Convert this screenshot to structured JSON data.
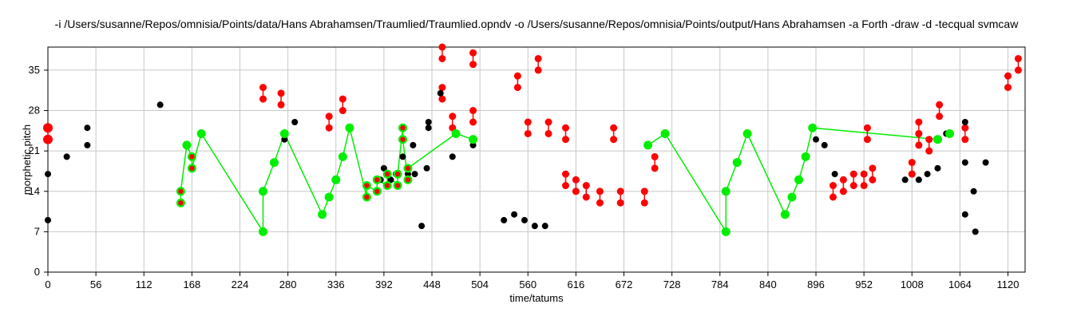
{
  "chart_data": {
    "type": "scatter",
    "title": "-i /Users/susanne/Repos/omnisia/Points/data/Hans Abrahamsen/Traumlied/Traumlied.opndv -o /Users/susanne/Repos/omnisia/Points/output/Hans Abrahamsen -a Forth -draw -d -tecqual svmcaw",
    "xlabel": "time/tatums",
    "ylabel": "morphetic pitch",
    "xlim": [
      0,
      1140
    ],
    "ylim": [
      0,
      39
    ],
    "xticks": [
      0,
      56,
      112,
      168,
      224,
      280,
      336,
      392,
      448,
      504,
      560,
      616,
      672,
      728,
      784,
      840,
      896,
      952,
      1008,
      1064,
      1120
    ],
    "yticks": [
      0,
      7,
      14,
      21,
      28,
      35
    ],
    "grid": true,
    "colors": {
      "pattern": "#00ee00",
      "occurrence": "#ff0000",
      "notes": "#000000",
      "grid": "#c8c8c8"
    },
    "notes": [
      [
        0,
        9
      ],
      [
        0,
        17
      ],
      [
        22,
        20
      ],
      [
        46,
        22
      ],
      [
        46,
        25
      ],
      [
        131,
        29
      ],
      [
        276,
        23
      ],
      [
        288,
        26
      ],
      [
        436,
        8
      ],
      [
        442,
        18
      ],
      [
        444,
        25
      ],
      [
        444,
        26
      ],
      [
        458,
        31
      ],
      [
        472,
        20
      ],
      [
        496,
        22
      ],
      [
        532,
        9
      ],
      [
        544,
        10
      ],
      [
        556,
        9
      ],
      [
        568,
        8
      ],
      [
        580,
        8
      ],
      [
        388,
        16
      ],
      [
        392,
        18
      ],
      [
        396,
        15
      ],
      [
        400,
        16
      ],
      [
        406,
        17
      ],
      [
        414,
        20
      ],
      [
        420,
        17
      ],
      [
        426,
        22
      ],
      [
        428,
        17
      ],
      [
        896,
        23
      ],
      [
        906,
        22
      ],
      [
        918,
        17
      ],
      [
        1000,
        16
      ],
      [
        1016,
        16
      ],
      [
        1026,
        17
      ],
      [
        1038,
        18
      ],
      [
        1048,
        24
      ],
      [
        1070,
        10
      ],
      [
        1070,
        19
      ],
      [
        1070,
        26
      ],
      [
        1080,
        14
      ],
      [
        1082,
        7
      ],
      [
        1094,
        19
      ]
    ],
    "pattern": [
      [
        155,
        12
      ],
      [
        155,
        14
      ],
      [
        162,
        22
      ],
      [
        168,
        20
      ],
      [
        168,
        18
      ],
      [
        179,
        24
      ],
      [
        251,
        7
      ],
      [
        251,
        14
      ],
      [
        264,
        19
      ],
      [
        276,
        24
      ],
      [
        320,
        10
      ],
      [
        328,
        13
      ],
      [
        336,
        16
      ],
      [
        344,
        20
      ],
      [
        352,
        25
      ],
      [
        372,
        13
      ],
      [
        372,
        15
      ],
      [
        384,
        14
      ],
      [
        384,
        16
      ],
      [
        396,
        15
      ],
      [
        396,
        17
      ],
      [
        408,
        15
      ],
      [
        408,
        17
      ],
      [
        414,
        25
      ],
      [
        414,
        23
      ],
      [
        420,
        16
      ],
      [
        420,
        18
      ],
      [
        476,
        24
      ],
      [
        496,
        23
      ],
      [
        700,
        22
      ],
      [
        720,
        24
      ],
      [
        791,
        7
      ],
      [
        791,
        14
      ],
      [
        804,
        19
      ],
      [
        816,
        24
      ],
      [
        860,
        10
      ],
      [
        868,
        13
      ],
      [
        876,
        16
      ],
      [
        884,
        20
      ],
      [
        892,
        25
      ],
      [
        1038,
        23
      ],
      [
        1052,
        24
      ]
    ],
    "pattern_lines": [
      [
        [
          155,
          12
        ],
        [
          155,
          14
        ],
        [
          162,
          22
        ],
        [
          168,
          20
        ],
        [
          168,
          18
        ],
        [
          179,
          24
        ],
        [
          251,
          7
        ],
        [
          251,
          14
        ],
        [
          264,
          19
        ],
        [
          276,
          24
        ],
        [
          320,
          10
        ],
        [
          328,
          13
        ],
        [
          336,
          16
        ],
        [
          344,
          20
        ],
        [
          352,
          25
        ],
        [
          372,
          13
        ],
        [
          372,
          15
        ],
        [
          384,
          14
        ],
        [
          384,
          16
        ],
        [
          396,
          15
        ],
        [
          396,
          17
        ],
        [
          408,
          15
        ],
        [
          408,
          17
        ],
        [
          414,
          25
        ],
        [
          414,
          23
        ],
        [
          420,
          16
        ],
        [
          420,
          18
        ],
        [
          476,
          24
        ],
        [
          496,
          23
        ]
      ],
      [
        [
          700,
          22
        ],
        [
          720,
          24
        ],
        [
          791,
          7
        ],
        [
          791,
          14
        ],
        [
          804,
          19
        ],
        [
          816,
          24
        ],
        [
          860,
          10
        ],
        [
          868,
          13
        ],
        [
          876,
          16
        ],
        [
          884,
          20
        ],
        [
          892,
          25
        ],
        [
          1038,
          23
        ]
      ]
    ],
    "pattern_red_inner": [
      [
        155,
        12
      ],
      [
        155,
        14
      ],
      [
        168,
        20
      ],
      [
        168,
        18
      ],
      [
        372,
        13
      ],
      [
        372,
        15
      ],
      [
        384,
        14
      ],
      [
        384,
        16
      ],
      [
        396,
        15
      ],
      [
        396,
        17
      ],
      [
        408,
        15
      ],
      [
        408,
        17
      ],
      [
        414,
        25
      ],
      [
        414,
        23
      ],
      [
        420,
        16
      ],
      [
        420,
        18
      ]
    ],
    "occurrences": [
      [
        [
          0,
          23
        ],
        [
          0,
          25
        ]
      ],
      [
        [
          251,
          30
        ],
        [
          251,
          32
        ]
      ],
      [
        [
          272,
          29
        ],
        [
          272,
          31
        ]
      ],
      [
        [
          328,
          25
        ],
        [
          328,
          27
        ]
      ],
      [
        [
          344,
          28
        ],
        [
          344,
          30
        ]
      ],
      [
        [
          460,
          30
        ],
        [
          460,
          32
        ]
      ],
      [
        [
          460,
          37
        ],
        [
          460,
          39
        ]
      ],
      [
        [
          472,
          25
        ],
        [
          472,
          27
        ]
      ],
      [
        [
          496,
          26
        ],
        [
          496,
          28
        ]
      ],
      [
        [
          496,
          36
        ],
        [
          496,
          38
        ]
      ],
      [
        [
          548,
          32
        ],
        [
          548,
          34
        ]
      ],
      [
        [
          560,
          24
        ],
        [
          560,
          26
        ]
      ],
      [
        [
          572,
          35
        ],
        [
          572,
          37
        ]
      ],
      [
        [
          584,
          24
        ],
        [
          584,
          26
        ]
      ],
      [
        [
          604,
          23
        ],
        [
          604,
          25
        ]
      ],
      [
        [
          604,
          15
        ],
        [
          604,
          17
        ]
      ],
      [
        [
          616,
          14
        ],
        [
          616,
          16
        ]
      ],
      [
        [
          628,
          13
        ],
        [
          628,
          15
        ]
      ],
      [
        [
          644,
          12
        ],
        [
          644,
          14
        ]
      ],
      [
        [
          660,
          23
        ],
        [
          660,
          25
        ]
      ],
      [
        [
          668,
          12
        ],
        [
          668,
          14
        ]
      ],
      [
        [
          696,
          12
        ],
        [
          696,
          14
        ]
      ],
      [
        [
          708,
          18
        ],
        [
          708,
          20
        ]
      ],
      [
        [
          916,
          13
        ],
        [
          916,
          15
        ]
      ],
      [
        [
          928,
          14
        ],
        [
          928,
          16
        ]
      ],
      [
        [
          940,
          15
        ],
        [
          940,
          17
        ]
      ],
      [
        [
          952,
          15
        ],
        [
          952,
          17
        ]
      ],
      [
        [
          956,
          23
        ],
        [
          956,
          25
        ]
      ],
      [
        [
          962,
          16
        ],
        [
          962,
          18
        ]
      ],
      [
        [
          1008,
          17
        ],
        [
          1008,
          19
        ]
      ],
      [
        [
          1016,
          22
        ],
        [
          1016,
          24
        ]
      ],
      [
        [
          1016,
          24
        ],
        [
          1016,
          26
        ]
      ],
      [
        [
          1028,
          21
        ],
        [
          1028,
          23
        ]
      ],
      [
        [
          1040,
          27
        ],
        [
          1040,
          29
        ]
      ],
      [
        [
          1070,
          23
        ],
        [
          1070,
          25
        ]
      ],
      [
        [
          1120,
          32
        ],
        [
          1120,
          34
        ]
      ],
      [
        [
          1132,
          35
        ],
        [
          1132,
          37
        ]
      ]
    ]
  }
}
